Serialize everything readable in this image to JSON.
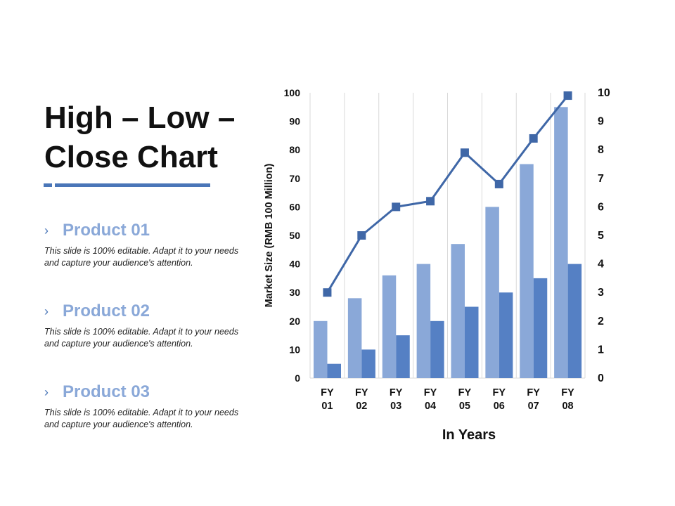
{
  "title_lines": [
    "High – Low –",
    "Close Chart"
  ],
  "colors": {
    "accent": "#4a76b8",
    "series_a": "#8aa8d8",
    "series_b": "#5580c4",
    "line": "#3f67a7",
    "product_name": "#8aa8d8"
  },
  "products": [
    {
      "marker": "›",
      "name": "Product 01",
      "description": "This slide is 100% editable. Adapt it to your needs and capture your audience's attention."
    },
    {
      "marker": "›",
      "name": "Product 02",
      "description": "This slide is 100% editable. Adapt it to your needs and capture your audience's attention."
    },
    {
      "marker": "›",
      "name": "Product 03",
      "description": "This slide is 100% editable. Adapt it to your needs and capture your audience's attention."
    }
  ],
  "chart_data": {
    "type": "bar",
    "categories": [
      [
        "FY",
        "01"
      ],
      [
        "FY",
        "02"
      ],
      [
        "FY",
        "03"
      ],
      [
        "FY",
        "04"
      ],
      [
        "FY",
        "05"
      ],
      [
        "FY",
        "06"
      ],
      [
        "FY",
        "07"
      ],
      [
        "FY",
        "08"
      ]
    ],
    "xlabel": "In Years",
    "ylabel": "Market Size (RMB 100 Million)",
    "ylim": [
      0,
      100
    ],
    "yticks": [
      "0",
      "10",
      "20",
      "30",
      "40",
      "50",
      "60",
      "70",
      "80",
      "90",
      "100"
    ],
    "y2lim": [
      0,
      10
    ],
    "y2ticks": [
      "0",
      "1",
      "2",
      "3",
      "4",
      "5",
      "6",
      "7",
      "8",
      "9",
      "10"
    ],
    "grid": "vertical",
    "series": [
      {
        "type": "bar",
        "axis": "left",
        "values": [
          20,
          28,
          36,
          40,
          47,
          60,
          75,
          95
        ]
      },
      {
        "type": "bar",
        "axis": "left",
        "values": [
          5,
          10,
          15,
          20,
          25,
          30,
          35,
          40
        ]
      },
      {
        "type": "line",
        "axis": "right",
        "values": [
          3,
          5,
          6,
          6.2,
          7.9,
          6.8,
          8.4,
          9.9
        ]
      }
    ]
  }
}
